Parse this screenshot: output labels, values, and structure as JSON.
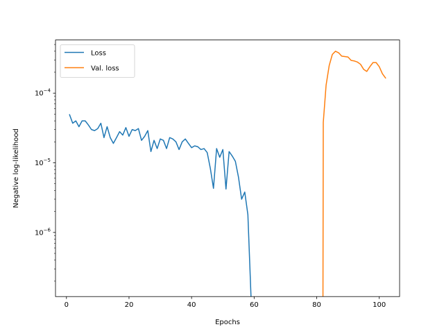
{
  "chart_data": {
    "type": "line",
    "title": "",
    "xlabel": "Epochs",
    "ylabel": "Negative log-likelihood",
    "yscale": "log",
    "xlim": [
      -3.5,
      106.5
    ],
    "ylim": [
      1.2e-07,
      0.00058
    ],
    "xticks": [
      {
        "value": 0,
        "label": "0"
      },
      {
        "value": 20,
        "label": "20"
      },
      {
        "value": 40,
        "label": "40"
      },
      {
        "value": 60,
        "label": "60"
      },
      {
        "value": 80,
        "label": "80"
      },
      {
        "value": 100,
        "label": "100"
      }
    ],
    "yticks": [
      {
        "value": 1e-06,
        "base": "10",
        "exp": "−6"
      },
      {
        "value": 1e-05,
        "base": "10",
        "exp": "−5"
      },
      {
        "value": 0.0001,
        "base": "10",
        "exp": "−4"
      }
    ],
    "grid": false,
    "legend_position": "upper-left",
    "series": [
      {
        "name": "Loss",
        "color": "#1f77b4",
        "x": [
          1,
          2,
          3,
          4,
          5,
          6,
          7,
          8,
          9,
          10,
          11,
          12,
          13,
          14,
          15,
          16,
          17,
          18,
          19,
          20,
          21,
          22,
          23,
          24,
          25,
          26,
          27,
          28,
          29,
          30,
          31,
          32,
          33,
          34,
          35,
          36,
          37,
          38,
          39,
          40,
          41,
          42,
          43,
          44,
          45,
          46,
          47,
          48,
          49,
          50,
          51,
          52,
          53,
          54,
          55,
          56,
          57,
          58,
          59
        ],
        "y": [
          4.9e-05,
          3.7e-05,
          4e-05,
          3.3e-05,
          4e-05,
          4e-05,
          3.5e-05,
          3e-05,
          2.9e-05,
          3.1e-05,
          3.7e-05,
          2.3e-05,
          3.3e-05,
          2.3e-05,
          1.9e-05,
          2.3e-05,
          2.8e-05,
          2.5e-05,
          3.2e-05,
          2.4e-05,
          3e-05,
          2.9e-05,
          3.1e-05,
          2.1e-05,
          2.4e-05,
          2.9e-05,
          1.45e-05,
          2.1e-05,
          1.6e-05,
          2.2e-05,
          2.1e-05,
          1.6e-05,
          2.3e-05,
          2.2e-05,
          2e-05,
          1.55e-05,
          2e-05,
          2.2e-05,
          1.9e-05,
          1.65e-05,
          1.75e-05,
          1.7e-05,
          1.55e-05,
          1.6e-05,
          1.4e-05,
          8.3e-06,
          4.3e-06,
          1.6e-05,
          1.2e-05,
          1.55e-05,
          4.2e-06,
          1.45e-05,
          1.25e-05,
          1.05e-05,
          6.2e-06,
          3e-06,
          3.8e-06,
          1.8e-06,
          1.2e-07
        ]
      },
      {
        "name": "Val. loss",
        "color": "#ff7f0e",
        "x": [
          82,
          82.1,
          83,
          84,
          85,
          86,
          87,
          88,
          89,
          90,
          91,
          92,
          93,
          94,
          95,
          96,
          97,
          98,
          99,
          100,
          101,
          102
        ],
        "y": [
          1.2e-07,
          3.8e-05,
          0.00013,
          0.00025,
          0.00036,
          0.0004,
          0.00038,
          0.00034,
          0.000335,
          0.00033,
          0.000295,
          0.00029,
          0.00028,
          0.00026,
          0.00022,
          0.000205,
          0.00024,
          0.000275,
          0.000275,
          0.00024,
          0.00019,
          0.000165
        ]
      }
    ]
  }
}
